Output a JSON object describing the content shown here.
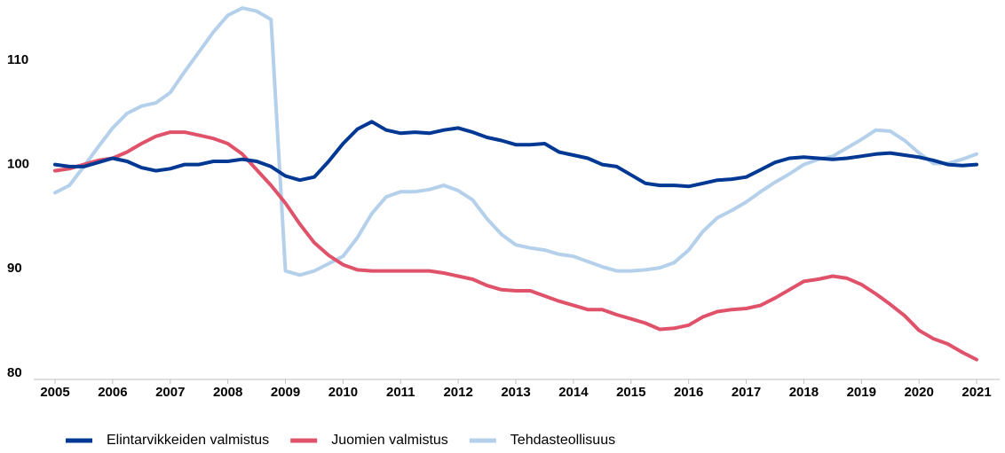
{
  "chart_data": {
    "type": "line",
    "x": [
      2005,
      2005.25,
      2005.5,
      2005.75,
      2006,
      2006.25,
      2006.5,
      2006.75,
      2007,
      2007.25,
      2007.5,
      2007.75,
      2008,
      2008.25,
      2008.5,
      2008.75,
      2009,
      2009.25,
      2009.5,
      2009.75,
      2010,
      2010.25,
      2010.5,
      2010.75,
      2011,
      2011.25,
      2011.5,
      2011.75,
      2012,
      2012.25,
      2012.5,
      2012.75,
      2013,
      2013.25,
      2013.5,
      2013.75,
      2014,
      2014.25,
      2014.5,
      2014.75,
      2015,
      2015.25,
      2015.5,
      2015.75,
      2016,
      2016.25,
      2016.5,
      2016.75,
      2017,
      2017.25,
      2017.5,
      2017.75,
      2018,
      2018.25,
      2018.5,
      2018.75,
      2019,
      2019.25,
      2019.5,
      2019.75,
      2020,
      2020.25,
      2020.5,
      2020.75,
      2021
    ],
    "series": [
      {
        "name": "Elintarvikkeiden valmistus",
        "color": "#003893",
        "values": [
          100,
          99.8,
          99.8,
          100.2,
          100.6,
          100.3,
          99.7,
          99.4,
          99.6,
          100,
          100,
          100.3,
          100.3,
          100.5,
          100.3,
          99.8,
          98.9,
          98.5,
          98.8,
          100.3,
          102,
          103.4,
          104.1,
          103.3,
          103,
          103.1,
          103,
          103.3,
          103.5,
          103.1,
          102.6,
          102.3,
          101.9,
          101.9,
          102,
          101.2,
          100.9,
          100.6,
          100,
          99.8,
          99,
          98.2,
          98,
          98,
          97.9,
          98.2,
          98.5,
          98.6,
          98.8,
          99.5,
          100.2,
          100.6,
          100.7,
          100.6,
          100.5,
          100.6,
          100.8,
          101,
          101.1,
          100.9,
          100.7,
          100.4,
          100,
          99.9,
          100
        ]
      },
      {
        "name": "Juomien valmistus",
        "color": "#e0526a",
        "values": [
          99.4,
          99.6,
          100,
          100.4,
          100.6,
          101.2,
          102,
          102.7,
          103.1,
          103.1,
          102.8,
          102.5,
          102,
          101,
          99.5,
          98,
          96.3,
          94.3,
          92.5,
          91.3,
          90.4,
          89.9,
          89.8,
          89.8,
          89.8,
          89.8,
          89.8,
          89.6,
          89.3,
          89,
          88.4,
          88,
          87.9,
          87.9,
          87.4,
          86.9,
          86.5,
          86.1,
          86.1,
          85.6,
          85.2,
          84.8,
          84.2,
          84.3,
          84.6,
          85.4,
          85.9,
          86.1,
          86.2,
          86.5,
          87.2,
          88,
          88.8,
          89,
          89.3,
          89.1,
          88.5,
          87.6,
          86.6,
          85.5,
          84.1,
          83.3,
          82.8,
          82,
          81.3
        ]
      },
      {
        "name": "Tehdasteollisuus",
        "color": "#b4d0ea",
        "values": [
          97.3,
          98,
          99.8,
          101.7,
          103.5,
          104.9,
          105.6,
          105.9,
          106.9,
          108.9,
          110.8,
          112.7,
          114.3,
          115,
          114.7,
          113.9,
          89.8,
          89.4,
          89.8,
          90.5,
          91.2,
          93,
          95.3,
          96.9,
          97.4,
          97.4,
          97.6,
          98,
          97.5,
          96.6,
          94.8,
          93.3,
          92.3,
          92,
          91.8,
          91.4,
          91.2,
          90.7,
          90.2,
          89.8,
          89.8,
          89.9,
          90.1,
          90.6,
          91.8,
          93.6,
          94.9,
          95.6,
          96.4,
          97.4,
          98.3,
          99.1,
          100,
          100.5,
          100.8,
          101.6,
          102.4,
          103.3,
          103.2,
          102.3,
          101.1,
          100.1,
          100.1,
          100.5,
          101
        ]
      }
    ],
    "xlim": [
      2005,
      2021.4
    ],
    "xticks": [
      2005,
      2006,
      2007,
      2008,
      2009,
      2010,
      2011,
      2012,
      2013,
      2014,
      2015,
      2016,
      2017,
      2018,
      2019,
      2020,
      2021
    ],
    "ylim": [
      79.4,
      115.6
    ],
    "yticks": [
      80,
      90,
      100,
      110
    ],
    "legend": "bottom"
  }
}
